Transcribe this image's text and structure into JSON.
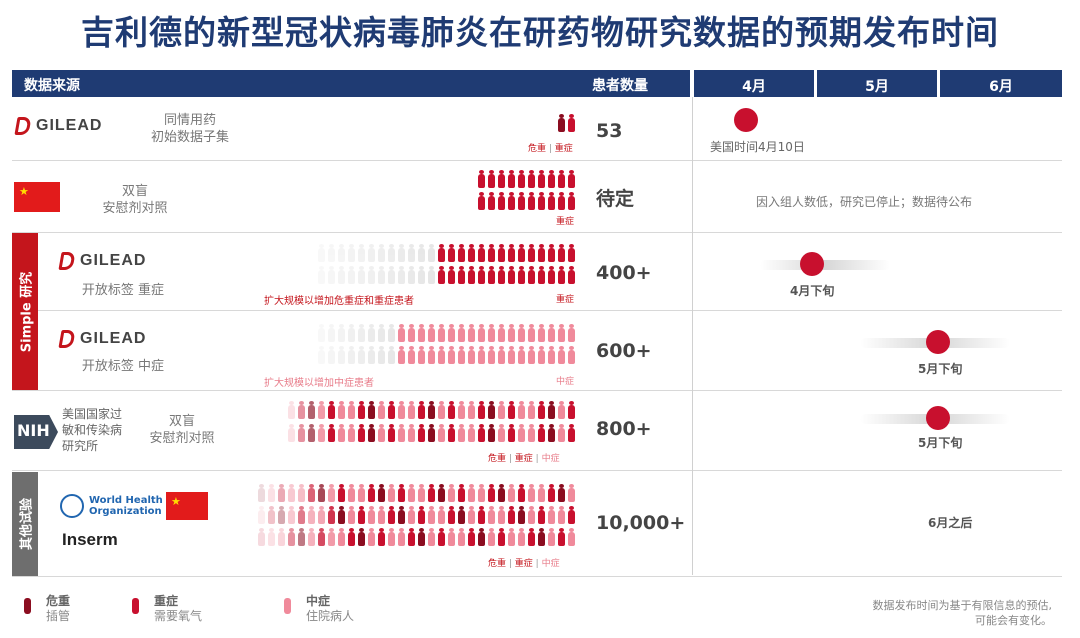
{
  "title": "吉利德的新型冠状病毒肺炎在研药物研究数据的预期发布时间",
  "header": {
    "source_label": "数据来源",
    "count_label": "患者数量",
    "months": [
      "4月",
      "5月",
      "6月"
    ]
  },
  "colors": {
    "navy": "#1f3b73",
    "critical": "#8b0d20",
    "severe": "#c8102e",
    "moderate": "#f08a9b",
    "empty": "#dedede"
  },
  "rows": [
    {
      "org": "GILEAD",
      "desc_line1": "同情用药",
      "desc_line2": "初始数据子集",
      "severity": [
        "危重",
        "重症"
      ],
      "count": "53",
      "timeline_label": "美国时间4月10日"
    },
    {
      "org": "china-flag",
      "desc_line1": "双盲",
      "desc_line2": "安慰剂对照",
      "severity": [
        "重症"
      ],
      "count": "待定",
      "timeline_note": "因入组人数低，研究已停止；数据待公布"
    },
    {
      "org": "GILEAD",
      "desc_line1": "开放标签 重症",
      "note": "扩大规模以增加危重症和重症患者",
      "severity": [
        "重症"
      ],
      "count": "400+",
      "timeline_label": "4月下旬"
    },
    {
      "org": "GILEAD",
      "desc_line1": "开放标签 中症",
      "note": "扩大规模以增加中症患者",
      "severity": [
        "中症"
      ],
      "count": "600+",
      "timeline_label": "5月下旬"
    },
    {
      "org": "NIH",
      "org_name_line1": "美国国家过",
      "org_name_line2": "敏和传染病",
      "org_name_line3": "研究所",
      "desc_line1": "双盲",
      "desc_line2": "安慰剂对照",
      "severity": [
        "危重",
        "重症",
        "中症"
      ],
      "count": "800+",
      "timeline_label": "5月下旬"
    },
    {
      "org": "World Health Organization / Inserm",
      "severity": [
        "危重",
        "重症",
        "中症"
      ],
      "count": "10,000+",
      "timeline_label": "6月之后"
    }
  ],
  "side_labels": {
    "simple": "Simple 研究",
    "other": "其他试验"
  },
  "logos": {
    "gilead": "GILEAD",
    "nih": "NIH",
    "who_line1": "World Health",
    "who_line2": "Organization",
    "inserm": "Inserm"
  },
  "legend": [
    {
      "name": "危重",
      "sub": "插管"
    },
    {
      "name": "重症",
      "sub": "需要氧气"
    },
    {
      "name": "中症",
      "sub": "住院病人"
    }
  ],
  "disclaimer_line1": "数据发布时间为基于有限信息的预估,",
  "disclaimer_line2": "可能会有变化。"
}
